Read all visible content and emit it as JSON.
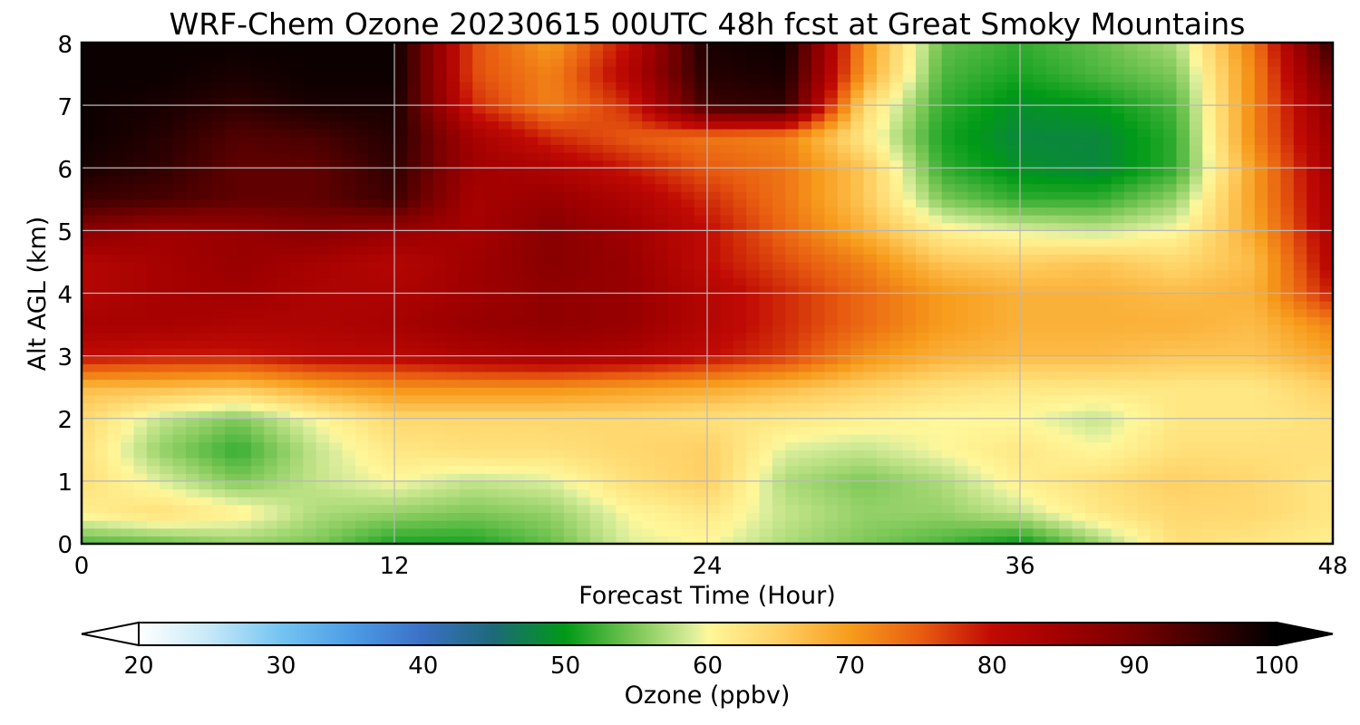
{
  "chart_data": {
    "type": "heatmap",
    "title": "WRF-Chem Ozone  20230615 00UTC 48h fcst at Great Smoky Mountains",
    "xlabel": "Forecast Time (Hour)",
    "ylabel": "Alt AGL (km)",
    "xlim": [
      0,
      48
    ],
    "ylim": [
      0,
      8
    ],
    "xticks": [
      "0",
      "12",
      "24",
      "36",
      "48"
    ],
    "yticks": [
      "0",
      "1",
      "2",
      "3",
      "4",
      "5",
      "6",
      "7",
      "8"
    ],
    "grid": true,
    "x": [
      0,
      3,
      6,
      9,
      12,
      15,
      18,
      21,
      24,
      27,
      30,
      33,
      36,
      39,
      42,
      45,
      48
    ],
    "y": [
      0,
      0.5,
      1,
      1.5,
      2,
      2.5,
      3,
      3.5,
      4,
      4.5,
      5,
      5.5,
      6,
      6.5,
      7,
      7.5,
      8
    ],
    "z": [
      [
        53,
        54,
        56,
        55,
        51,
        51,
        54,
        59,
        60,
        57,
        55,
        53,
        50,
        56,
        63,
        62,
        61
      ],
      [
        61,
        63,
        61,
        57,
        56,
        55,
        56,
        60,
        62,
        58,
        56,
        56,
        58,
        62,
        64,
        64,
        62
      ],
      [
        63,
        59,
        55,
        58,
        60,
        58,
        59,
        63,
        65,
        57,
        55,
        57,
        61,
        63,
        65,
        64,
        62
      ],
      [
        63,
        56,
        52,
        58,
        62,
        63,
        63,
        64,
        65,
        59,
        58,
        60,
        62,
        60,
        63,
        63,
        63
      ],
      [
        64,
        58,
        55,
        60,
        64,
        64,
        64,
        64,
        63,
        62,
        61,
        60,
        60,
        58,
        62,
        62,
        63
      ],
      [
        67,
        67,
        66,
        69,
        71,
        71,
        71,
        70,
        69,
        67,
        65,
        63,
        62,
        62,
        62,
        62,
        65
      ],
      [
        80,
        79,
        79,
        81,
        81,
        83,
        84,
        83,
        80,
        77,
        71,
        68,
        67,
        67,
        66,
        66,
        69
      ],
      [
        84,
        84,
        83,
        83,
        84,
        86,
        87,
        86,
        82,
        78,
        74,
        70,
        68,
        68,
        68,
        67,
        72
      ],
      [
        82,
        84,
        85,
        83,
        83,
        85,
        87,
        86,
        82,
        78,
        74,
        70,
        68,
        68,
        67,
        68,
        79
      ],
      [
        82,
        84,
        86,
        84,
        82,
        85,
        88,
        86,
        80,
        76,
        72,
        66,
        65,
        66,
        64,
        67,
        82
      ],
      [
        88,
        85,
        86,
        88,
        86,
        84,
        88,
        85,
        80,
        74,
        68,
        61,
        59,
        58,
        60,
        69,
        83
      ],
      [
        95,
        94,
        92,
        92,
        95,
        84,
        86,
        83,
        78,
        73,
        66,
        55,
        52,
        52,
        56,
        70,
        84
      ],
      [
        98,
        96,
        92,
        92,
        96,
        85,
        83,
        79,
        75,
        73,
        66,
        52,
        49,
        48,
        52,
        70,
        85
      ],
      [
        99,
        97,
        93,
        94,
        97,
        84,
        78,
        75,
        73,
        72,
        62,
        51,
        48,
        48,
        52,
        72,
        86
      ],
      [
        99,
        98,
        96,
        98,
        98,
        78,
        72,
        78,
        95,
        96,
        64,
        52,
        49,
        50,
        53,
        72,
        88
      ],
      [
        99,
        99,
        98,
        99,
        99,
        76,
        72,
        82,
        97,
        98,
        70,
        53,
        51,
        53,
        55,
        72,
        92
      ],
      [
        99,
        99,
        99,
        99,
        99,
        76,
        70,
        80,
        98,
        99,
        71,
        54,
        52,
        54,
        57,
        73,
        96
      ]
    ],
    "colorbar": {
      "label": "Ozone  (ppbv)",
      "min": 20,
      "max": 100,
      "ticks": [
        "20",
        "30",
        "40",
        "50",
        "60",
        "70",
        "80",
        "90",
        "100"
      ],
      "extend": "both",
      "stops": [
        [
          20,
          "#ffffff"
        ],
        [
          25,
          "#c6e8f8"
        ],
        [
          30,
          "#74c4f2"
        ],
        [
          35,
          "#4c9ce6"
        ],
        [
          40,
          "#3a70c6"
        ],
        [
          45,
          "#1c6a78"
        ],
        [
          50,
          "#009a16"
        ],
        [
          55,
          "#7ec858"
        ],
        [
          59,
          "#dcee9c"
        ],
        [
          60,
          "#fff79a"
        ],
        [
          65,
          "#ffd064"
        ],
        [
          70,
          "#f79c1c"
        ],
        [
          75,
          "#e85c10"
        ],
        [
          80,
          "#c00a04"
        ],
        [
          85,
          "#a00000"
        ],
        [
          90,
          "#780000"
        ],
        [
          95,
          "#3c0000"
        ],
        [
          100,
          "#000000"
        ]
      ]
    }
  }
}
